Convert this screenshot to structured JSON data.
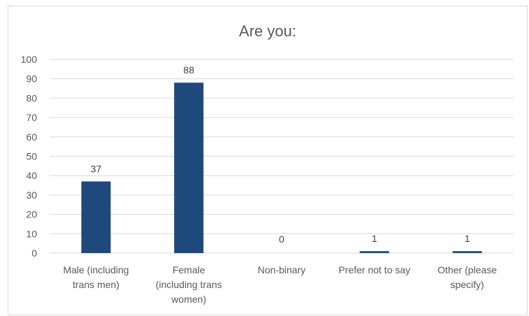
{
  "chart_data": {
    "type": "bar",
    "title": "Are you:",
    "xlabel": "",
    "ylabel": "",
    "categories": [
      [
        "Male (including",
        "trans men)"
      ],
      [
        "Female",
        "(including trans",
        "women)"
      ],
      [
        "Non-binary"
      ],
      [
        "Prefer not to say"
      ],
      [
        "Other (please",
        "specify)"
      ]
    ],
    "values": [
      37,
      88,
      0,
      1,
      1
    ],
    "data_labels": [
      "37",
      "88",
      "0",
      "1",
      "1"
    ],
    "ylim": [
      0,
      100
    ],
    "yticks": [
      "0",
      "10",
      "20",
      "30",
      "40",
      "50",
      "60",
      "70",
      "80",
      "90",
      "100"
    ],
    "grid": true,
    "legend": "none",
    "bar_color": "#1f497d",
    "grid_color": "#d9d9d9"
  }
}
